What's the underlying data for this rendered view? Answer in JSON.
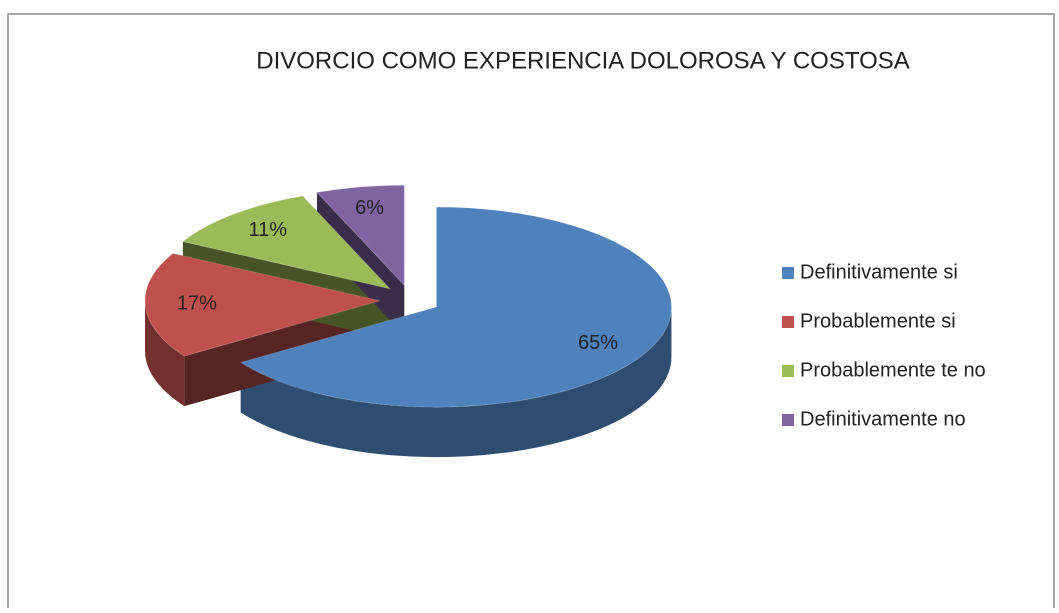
{
  "chart_data": {
    "type": "pie",
    "title": "DIVORCIO COMO EXPERIENCIA DOLOROSA Y COSTOSA",
    "categories": [
      "Definitivamente si",
      "Probablemente si",
      "Probablemente te no",
      "Definitivamente no"
    ],
    "values": [
      65,
      17,
      11,
      6
    ],
    "value_labels": [
      "65%",
      "17%",
      "11%",
      "6%"
    ],
    "colors": [
      "#4f81bd",
      "#c0504d",
      "#9bbb59",
      "#8064a2"
    ],
    "legend": "right"
  }
}
